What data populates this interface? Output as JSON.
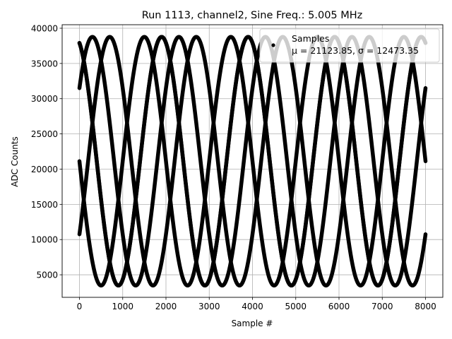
{
  "chart_data": {
    "type": "scatter",
    "title": "Run 1113, channel2, Sine Freq.: 5.005 MHz",
    "xlabel": "Sample #",
    "ylabel": "ADC Counts",
    "xlim": [
      -400,
      8400
    ],
    "ylim": [
      1800,
      40500
    ],
    "xticks": [
      0,
      1000,
      2000,
      3000,
      4000,
      5000,
      6000,
      7000,
      8000
    ],
    "yticks": [
      5000,
      10000,
      15000,
      20000,
      25000,
      30000,
      35000,
      40000
    ],
    "grid": true,
    "legend": {
      "placement": "top-right",
      "series_name": "Samples",
      "stats_text": "μ = 21123.85, σ = 12473.35"
    },
    "color": "#000000",
    "signal": {
      "center": 21125,
      "amplitude": 17650,
      "period_samples": 2000,
      "branch_phases_deg": [
        180,
        -36,
        -324,
        108,
        -252
      ],
      "x_range": [
        0,
        8000
      ]
    }
  }
}
